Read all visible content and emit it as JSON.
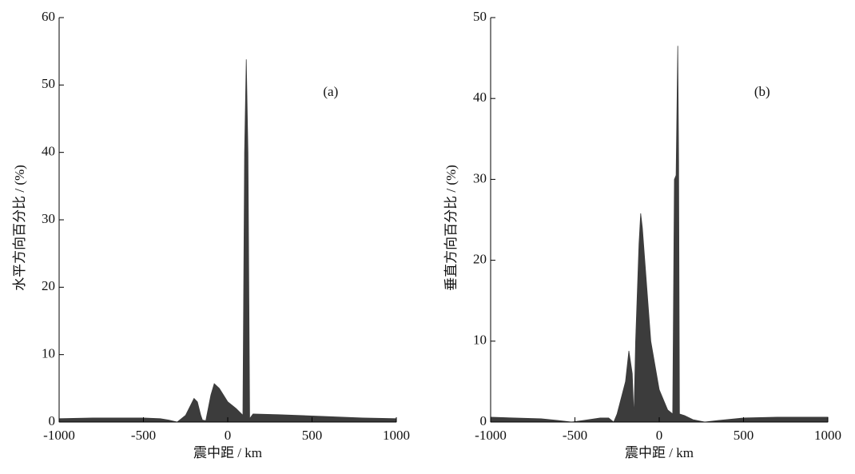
{
  "chart_data": [
    {
      "type": "area",
      "ylabel": "水平方向百分比 / (%)",
      "xlabel": "震中距 / km",
      "annotation": "(a)",
      "color": "#3c3c3c",
      "x": [
        -1000,
        -800,
        -500,
        -400,
        -350,
        -300,
        -250,
        -220,
        -200,
        -180,
        -160,
        -150,
        -130,
        -100,
        -80,
        -50,
        0,
        50,
        90,
        100,
        110,
        120,
        130,
        150,
        300,
        500,
        800,
        1000
      ],
      "values": [
        0.5,
        0.6,
        0.6,
        0.5,
        0.3,
        0,
        1,
        2.5,
        3.5,
        3,
        1,
        0.3,
        0.2,
        4,
        5.7,
        5,
        3,
        2,
        1,
        40,
        53.8,
        40,
        0.5,
        1.2,
        1.1,
        0.9,
        0.6,
        0.5
      ],
      "xlim": [
        -1000,
        1000
      ],
      "xticks": [
        -1000,
        -500,
        0,
        500,
        1000
      ],
      "ylim": [
        0,
        60
      ],
      "yticks": [
        0,
        10,
        20,
        30,
        40,
        50,
        60
      ]
    },
    {
      "type": "area",
      "ylabel": "垂直方向百分比 / (%)",
      "xlabel": "震中距 / km",
      "annotation": "(b)",
      "color": "#3c3c3c",
      "x": [
        -1000,
        -700,
        -600,
        -520,
        -450,
        -350,
        -300,
        -270,
        -250,
        -200,
        -180,
        -160,
        -150,
        -140,
        -120,
        -110,
        -100,
        -50,
        0,
        50,
        80,
        90,
        100,
        110,
        115,
        120,
        150,
        200,
        270,
        350,
        500,
        700,
        1000
      ],
      "values": [
        0.6,
        0.4,
        0.2,
        0,
        0.2,
        0.5,
        0.5,
        0,
        1,
        5,
        8.8,
        6,
        0.5,
        10,
        22,
        25.8,
        24,
        10,
        4,
        1.5,
        1,
        30,
        30.5,
        46.5,
        32,
        1,
        0.8,
        0.3,
        0,
        0.2,
        0.5,
        0.6,
        0.6
      ],
      "xlim": [
        -1000,
        1000
      ],
      "xticks": [
        -1000,
        -500,
        0,
        500,
        1000
      ],
      "ylim": [
        0,
        50
      ],
      "yticks": [
        0,
        10,
        20,
        30,
        40,
        50
      ]
    }
  ]
}
